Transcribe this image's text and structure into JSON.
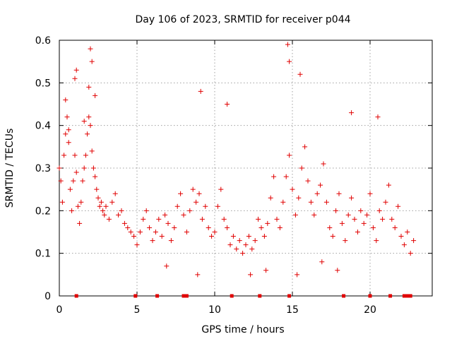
{
  "chart_data": {
    "type": "scatter",
    "title": "Day 106 of 2023, SRMTID for receiver p044",
    "xlabel": "GPS time / hours",
    "ylabel": "SRMTID / TECUs",
    "xlim": [
      0,
      24
    ],
    "ylim": [
      0,
      0.6
    ],
    "xticks": [
      0,
      5,
      10,
      15,
      20
    ],
    "xtick_labels": [
      "0",
      "5",
      "10",
      "15",
      "20"
    ],
    "yticks": [
      0,
      0.1,
      0.2,
      0.3,
      0.4,
      0.5,
      0.6
    ],
    "ytick_labels": [
      "0",
      "0.1",
      "0.2",
      "0.3",
      "0.4",
      "0.5",
      "0.6"
    ],
    "grid": true,
    "legend": "none",
    "marker": "+",
    "color": "#e00000",
    "series": [
      {
        "name": "SRMTID",
        "x": [
          0.0,
          0.1,
          0.2,
          0.3,
          0.4,
          0.5,
          0.6,
          0.7,
          0.8,
          0.9,
          1.0,
          1.1,
          1.2,
          1.3,
          1.4,
          1.5,
          1.6,
          1.7,
          1.8,
          1.9,
          2.0,
          2.1,
          2.2,
          2.3,
          2.4,
          2.5,
          2.6,
          2.7,
          2.8,
          2.9,
          3.0,
          3.2,
          3.4,
          3.6,
          3.8,
          4.0,
          4.2,
          4.4,
          4.6,
          4.8,
          5.0,
          5.2,
          5.4,
          5.6,
          5.8,
          6.0,
          6.2,
          6.4,
          6.6,
          6.8,
          7.0,
          7.2,
          7.4,
          7.6,
          7.8,
          8.0,
          8.2,
          8.4,
          8.6,
          8.8,
          9.0,
          9.2,
          9.4,
          9.6,
          9.8,
          10.0,
          10.2,
          10.4,
          10.6,
          10.8,
          11.0,
          11.2,
          11.4,
          11.6,
          11.8,
          12.0,
          12.2,
          12.4,
          12.6,
          12.8,
          13.0,
          13.2,
          13.4,
          13.6,
          13.8,
          14.0,
          14.2,
          14.4,
          14.6,
          14.8,
          15.0,
          15.2,
          15.4,
          15.6,
          15.8,
          16.0,
          16.2,
          16.4,
          16.6,
          16.8,
          17.0,
          17.2,
          17.4,
          17.6,
          17.8,
          18.0,
          18.2,
          18.4,
          18.6,
          18.8,
          19.0,
          19.2,
          19.4,
          19.6,
          19.8,
          20.0,
          20.2,
          20.4,
          20.6,
          20.8,
          21.0,
          21.2,
          21.4,
          21.6,
          21.8,
          22.0,
          22.2,
          22.4,
          22.6,
          22.8,
          1.0,
          1.1,
          1.9,
          2.0,
          2.1,
          9.1,
          10.8,
          14.7,
          14.8,
          15.5,
          18.8,
          20.5,
          0.4,
          0.6,
          1.6,
          2.3,
          6.9,
          8.9,
          12.3,
          13.3,
          15.3,
          16.9,
          17.9
        ],
        "y": [
          0.3,
          0.27,
          0.22,
          0.33,
          0.38,
          0.42,
          0.36,
          0.25,
          0.2,
          0.27,
          0.33,
          0.29,
          0.21,
          0.17,
          0.22,
          0.27,
          0.3,
          0.33,
          0.38,
          0.42,
          0.4,
          0.34,
          0.3,
          0.28,
          0.25,
          0.23,
          0.21,
          0.22,
          0.2,
          0.19,
          0.21,
          0.18,
          0.22,
          0.24,
          0.19,
          0.2,
          0.17,
          0.16,
          0.15,
          0.14,
          0.12,
          0.15,
          0.18,
          0.2,
          0.16,
          0.13,
          0.15,
          0.18,
          0.14,
          0.19,
          0.17,
          0.13,
          0.16,
          0.21,
          0.24,
          0.19,
          0.15,
          0.2,
          0.25,
          0.22,
          0.24,
          0.18,
          0.21,
          0.16,
          0.14,
          0.15,
          0.21,
          0.25,
          0.18,
          0.16,
          0.12,
          0.14,
          0.11,
          0.13,
          0.1,
          0.12,
          0.14,
          0.11,
          0.13,
          0.18,
          0.16,
          0.14,
          0.17,
          0.23,
          0.28,
          0.18,
          0.16,
          0.22,
          0.28,
          0.33,
          0.25,
          0.19,
          0.23,
          0.3,
          0.35,
          0.27,
          0.22,
          0.19,
          0.24,
          0.26,
          0.31,
          0.22,
          0.16,
          0.14,
          0.2,
          0.24,
          0.17,
          0.13,
          0.19,
          0.23,
          0.18,
          0.15,
          0.2,
          0.17,
          0.19,
          0.24,
          0.16,
          0.13,
          0.2,
          0.18,
          0.22,
          0.26,
          0.18,
          0.16,
          0.21,
          0.14,
          0.12,
          0.15,
          0.1,
          0.13,
          0.51,
          0.53,
          0.49,
          0.58,
          0.55,
          0.48,
          0.45,
          0.59,
          0.55,
          0.52,
          0.43,
          0.42,
          0.46,
          0.39,
          0.41,
          0.47,
          0.07,
          0.05,
          0.05,
          0.06,
          0.05,
          0.08,
          0.06
        ]
      }
    ],
    "baseline_markers_x": [
      1.1,
      4.9,
      6.3,
      8.0,
      8.2,
      11.1,
      12.9,
      14.8,
      18.3,
      20.0,
      21.3,
      22.2,
      22.4,
      22.6
    ]
  }
}
